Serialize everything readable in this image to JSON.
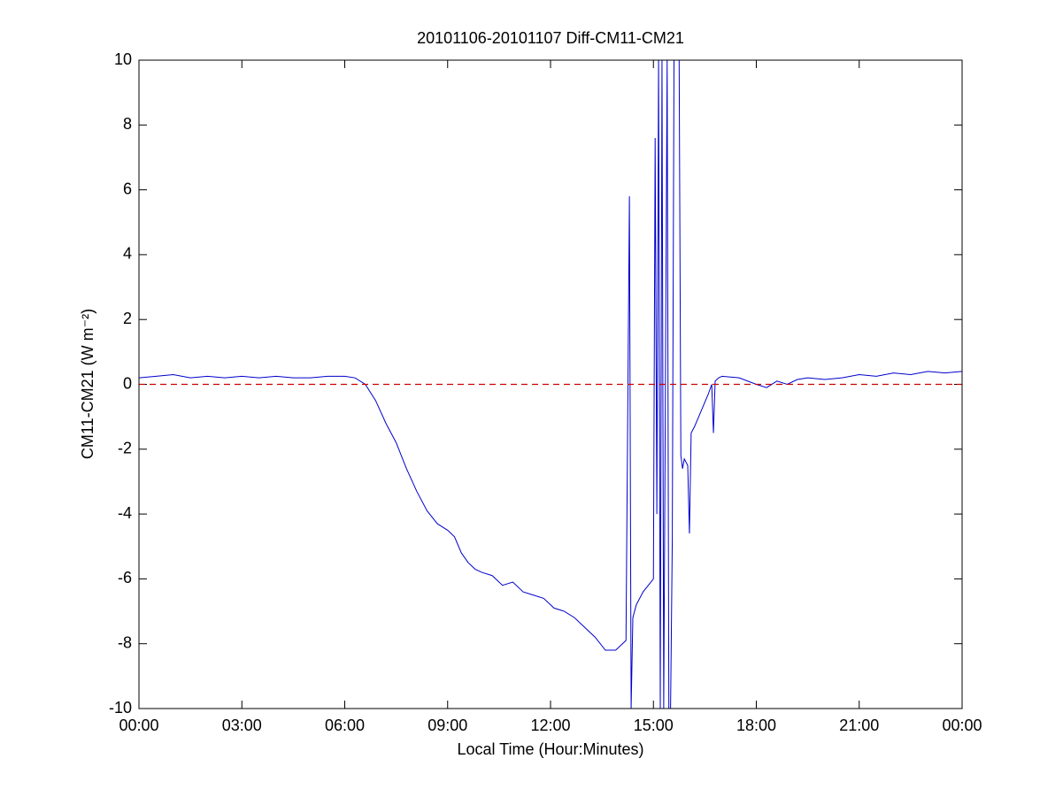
{
  "chart_data": {
    "type": "line",
    "title": "20101106-20101107 Diff-CM11-CM21",
    "xlabel": "Local Time (Hour:Minutes)",
    "ylabel": "CM11-CM21 (W m⁻²)",
    "x": [
      0,
      0.5,
      1,
      1.5,
      2,
      2.5,
      3,
      3.5,
      4,
      4.5,
      5,
      5.5,
      6,
      6.3,
      6.6,
      6.9,
      7.2,
      7.5,
      7.8,
      8.1,
      8.4,
      8.7,
      9,
      9.2,
      9.4,
      9.6,
      9.8,
      10,
      10.3,
      10.6,
      10.9,
      11.2,
      11.5,
      11.8,
      12.1,
      12.4,
      12.7,
      13,
      13.3,
      13.6,
      13.9,
      14.2,
      14.3,
      14.35,
      14.4,
      14.5,
      14.7,
      15,
      15.05,
      15.1,
      15.15,
      15.2,
      15.25,
      15.3,
      15.4,
      15.45,
      15.5,
      15.55,
      15.6,
      15.7,
      15.75,
      15.8,
      15.85,
      15.9,
      16,
      16.05,
      16.1,
      16.2,
      16.4,
      16.6,
      16.7,
      16.75,
      16.8,
      16.9,
      17,
      17.5,
      18,
      18.3,
      18.6,
      18.9,
      19.2,
      19.5,
      20,
      20.5,
      21,
      21.5,
      22,
      22.5,
      23,
      23.5,
      24
    ],
    "series": [
      {
        "name": "Diff-CM11-CM21",
        "color": "#0000cc",
        "values": [
          0.2,
          0.25,
          0.3,
          0.2,
          0.25,
          0.2,
          0.25,
          0.2,
          0.25,
          0.2,
          0.2,
          0.25,
          0.25,
          0.2,
          0.0,
          -0.5,
          -1.2,
          -1.8,
          -2.6,
          -3.3,
          -3.9,
          -4.3,
          -4.5,
          -4.7,
          -5.2,
          -5.5,
          -5.7,
          -5.8,
          -5.9,
          -6.2,
          -6.1,
          -6.4,
          -6.5,
          -6.6,
          -6.9,
          -7.0,
          -7.2,
          -7.5,
          -7.8,
          -8.2,
          -8.2,
          -7.9,
          5.8,
          -10,
          -7.2,
          -6.8,
          -6.4,
          -6.0,
          7.6,
          -4.0,
          10,
          -10,
          10,
          -10,
          10,
          -10,
          -10,
          -4.8,
          10,
          10,
          10,
          -2.2,
          -2.6,
          -2.3,
          -2.5,
          -4.6,
          -1.5,
          -1.3,
          -0.8,
          -0.3,
          0.0,
          -1.5,
          0.1,
          0.2,
          0.25,
          0.2,
          0.0,
          -0.1,
          0.1,
          0.0,
          0.15,
          0.2,
          0.15,
          0.2,
          0.3,
          0.25,
          0.35,
          0.3,
          0.4,
          0.35,
          0.4
        ]
      }
    ],
    "reference_line": {
      "value": 0,
      "color": "#cc0000",
      "style": "dashed"
    },
    "xlim": [
      0,
      24
    ],
    "xticks": [
      {
        "value": 0,
        "label": "00:00"
      },
      {
        "value": 3,
        "label": "03:00"
      },
      {
        "value": 6,
        "label": "06:00"
      },
      {
        "value": 9,
        "label": "09:00"
      },
      {
        "value": 12,
        "label": "12:00"
      },
      {
        "value": 15,
        "label": "15:00"
      },
      {
        "value": 18,
        "label": "18:00"
      },
      {
        "value": 21,
        "label": "21:00"
      },
      {
        "value": 24,
        "label": "00:00"
      }
    ],
    "ylim": [
      -10,
      10
    ],
    "yticks": [
      -10,
      -8,
      -6,
      -4,
      -2,
      0,
      2,
      4,
      6,
      8,
      10
    ],
    "grid": false
  }
}
